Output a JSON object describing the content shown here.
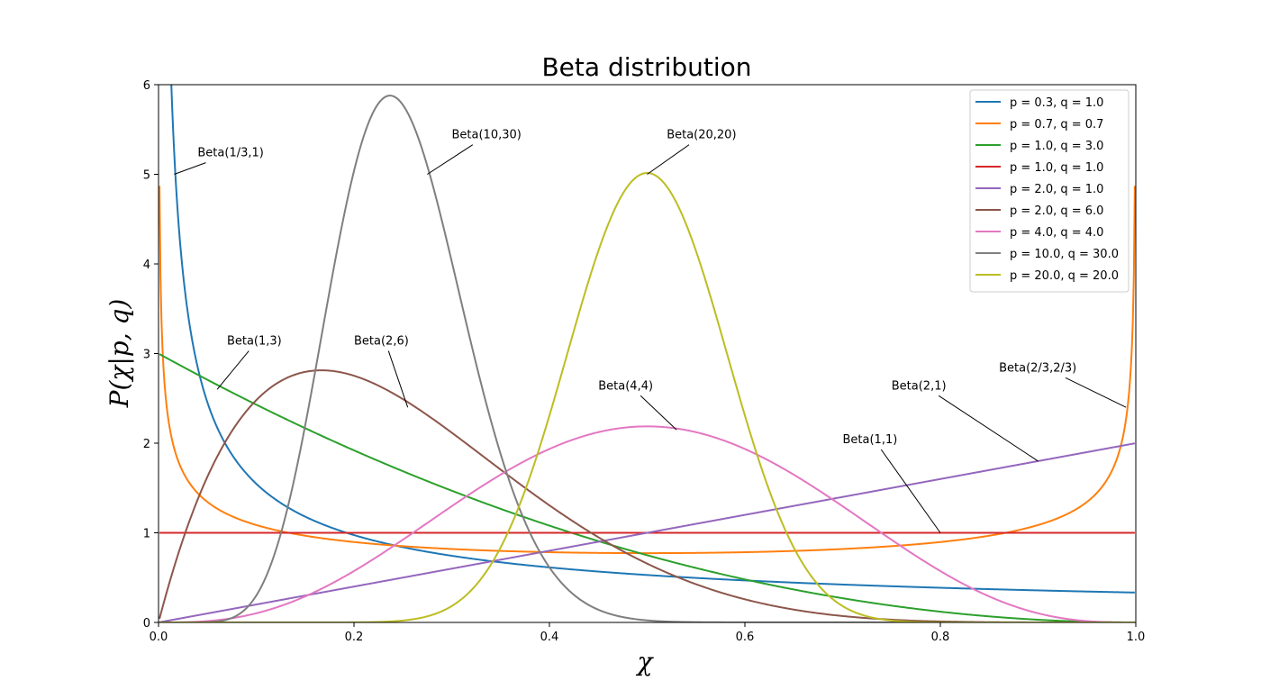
{
  "chart_data": {
    "type": "line",
    "title": "Beta distribution",
    "xlabel": "χ",
    "ylabel": "P(χ|p, q)",
    "xlim": [
      0.0,
      1.0
    ],
    "ylim": [
      0,
      6
    ],
    "x_ticks": [
      "0.0",
      "0.2",
      "0.4",
      "0.6",
      "0.8",
      "1.0"
    ],
    "y_ticks": [
      "0",
      "1",
      "2",
      "3",
      "4",
      "5",
      "6"
    ],
    "grid": false,
    "legend_position": "top-right",
    "series": [
      {
        "name": "p = 0.3,  q = 1.0",
        "p": 0.3333,
        "q": 1.0,
        "color": "#1f77b4"
      },
      {
        "name": "p = 0.7,  q = 0.7",
        "p": 0.6667,
        "q": 0.6667,
        "color": "#ff7f0e"
      },
      {
        "name": "p = 1.0,  q = 3.0",
        "p": 1.0,
        "q": 3.0,
        "color": "#2ca02c"
      },
      {
        "name": "p = 1.0,  q = 1.0",
        "p": 1.0,
        "q": 1.0,
        "color": "#d62728"
      },
      {
        "name": "p = 2.0,  q = 1.0",
        "p": 2.0,
        "q": 1.0,
        "color": "#9467bd"
      },
      {
        "name": "p = 2.0,  q = 6.0",
        "p": 2.0,
        "q": 6.0,
        "color": "#8c564b"
      },
      {
        "name": "p = 4.0,  q = 4.0",
        "p": 4.0,
        "q": 4.0,
        "color": "#e377c2"
      },
      {
        "name": "p = 10.0,  q = 30.0",
        "p": 10.0,
        "q": 30.0,
        "color": "#7f7f7f"
      },
      {
        "name": "p = 20.0,  q = 20.0",
        "p": 20.0,
        "q": 20.0,
        "color": "#bcbd22"
      }
    ],
    "annotations": [
      {
        "text": "Beta(1/3,1)",
        "xy": [
          0.016,
          5.0
        ],
        "xytext": [
          0.04,
          5.2
        ]
      },
      {
        "text": "Beta(10,30)",
        "xy": [
          0.275,
          5.0
        ],
        "xytext": [
          0.3,
          5.4
        ]
      },
      {
        "text": "Beta(20,20)",
        "xy": [
          0.5,
          5.0
        ],
        "xytext": [
          0.52,
          5.4
        ]
      },
      {
        "text": "Beta(1,3)",
        "xy": [
          0.06,
          2.6
        ],
        "xytext": [
          0.07,
          3.1
        ]
      },
      {
        "text": "Beta(2,6)",
        "xy": [
          0.255,
          2.4
        ],
        "xytext": [
          0.2,
          3.1
        ]
      },
      {
        "text": "Beta(4,4)",
        "xy": [
          0.53,
          2.15
        ],
        "xytext": [
          0.45,
          2.6
        ]
      },
      {
        "text": "Beta(2/3,2/3)",
        "xy": [
          0.99,
          2.4
        ],
        "xytext": [
          0.86,
          2.8
        ]
      },
      {
        "text": "Beta(2,1)",
        "xy": [
          0.9,
          1.8
        ],
        "xytext": [
          0.75,
          2.6
        ]
      },
      {
        "text": "Beta(1,1)",
        "xy": [
          0.8,
          1.0
        ],
        "xytext": [
          0.7,
          2.0
        ]
      }
    ]
  }
}
